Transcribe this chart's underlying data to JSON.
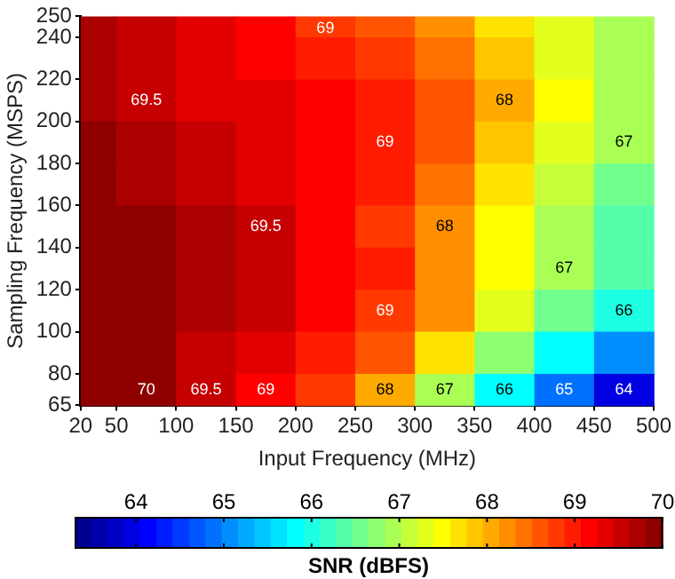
{
  "chart_data": {
    "type": "heatmap",
    "xlabel": "Input Frequency (MHz)",
    "ylabel": "Sampling Frequency (MSPS)",
    "clabel": "SNR (dBFS)",
    "x": [
      35,
      75,
      125,
      175,
      225,
      275,
      325,
      375,
      425,
      475
    ],
    "y": [
      245,
      230,
      210,
      190,
      170,
      150,
      130,
      110,
      90,
      72.5
    ],
    "cells": [
      [
        69.75,
        69.6,
        69.4,
        69.15,
        68.85,
        68.55,
        68.2,
        67.75,
        67.25,
        66.85
      ],
      [
        69.75,
        69.6,
        69.4,
        69.25,
        69.05,
        68.8,
        68.35,
        67.85,
        67.35,
        66.9
      ],
      [
        69.75,
        69.5,
        69.4,
        69.3,
        69.2,
        69.0,
        68.55,
        68.0,
        67.5,
        67.0
      ],
      [
        69.85,
        69.7,
        69.5,
        69.35,
        69.2,
        69.0,
        68.55,
        67.95,
        67.35,
        66.9
      ],
      [
        69.95,
        69.8,
        69.6,
        69.4,
        69.2,
        68.95,
        68.35,
        67.65,
        67.05,
        66.55
      ],
      [
        70.05,
        69.85,
        69.65,
        69.5,
        69.2,
        68.85,
        68.2,
        67.45,
        66.85,
        66.45
      ],
      [
        70.15,
        69.9,
        69.7,
        69.45,
        69.2,
        68.9,
        68.2,
        67.45,
        66.85,
        66.4
      ],
      [
        70.2,
        69.95,
        69.7,
        69.45,
        69.2,
        68.85,
        68.15,
        67.3,
        66.6,
        66.05
      ],
      [
        70.2,
        69.9,
        69.6,
        69.3,
        68.95,
        68.55,
        67.75,
        66.75,
        65.9,
        65.15
      ],
      [
        70.2,
        69.9,
        69.55,
        69.2,
        68.7,
        68.0,
        66.9,
        65.8,
        64.9,
        63.9
      ]
    ],
    "cell_labels": [
      [
        null,
        null,
        null,
        null,
        "69",
        null,
        null,
        null,
        null,
        null
      ],
      [
        null,
        null,
        null,
        null,
        null,
        null,
        null,
        null,
        null,
        null
      ],
      [
        null,
        "69.5",
        null,
        null,
        null,
        null,
        null,
        "68",
        null,
        null
      ],
      [
        null,
        null,
        null,
        null,
        null,
        "69",
        null,
        null,
        null,
        "67"
      ],
      [
        null,
        null,
        null,
        null,
        null,
        null,
        null,
        null,
        null,
        null
      ],
      [
        null,
        null,
        null,
        "69.5",
        null,
        null,
        "68",
        null,
        null,
        null
      ],
      [
        null,
        null,
        null,
        null,
        null,
        null,
        null,
        null,
        "67",
        null
      ],
      [
        null,
        null,
        null,
        null,
        null,
        "69",
        null,
        null,
        null,
        "66"
      ],
      [
        null,
        null,
        null,
        null,
        null,
        null,
        null,
        null,
        null,
        null
      ],
      [
        null,
        "70",
        "69.5",
        "69",
        null,
        "68",
        "67",
        "66",
        "65",
        "64"
      ]
    ],
    "xlim": [
      20,
      500
    ],
    "xticks": [
      20,
      50,
      100,
      150,
      200,
      250,
      300,
      350,
      400,
      450,
      500
    ],
    "ylim": [
      65,
      250
    ],
    "yticks": [
      65,
      80,
      100,
      120,
      140,
      160,
      180,
      200,
      220,
      240,
      250
    ],
    "clim": [
      63.3,
      70
    ],
    "cticks": [
      64,
      65,
      66,
      67,
      68,
      69,
      70
    ]
  }
}
